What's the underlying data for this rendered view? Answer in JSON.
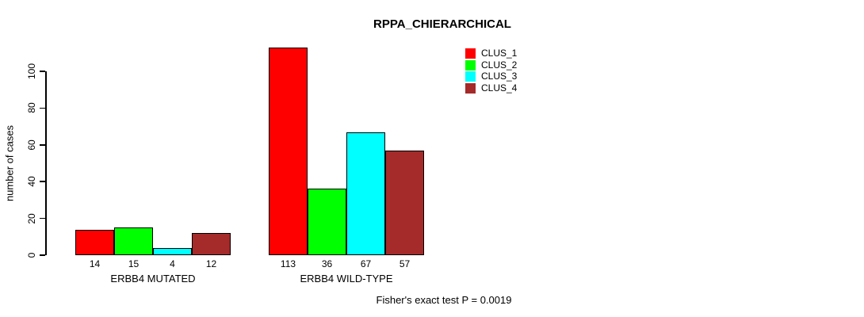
{
  "chart_data": {
    "type": "bar",
    "title": "RPPA_CHIERARCHICAL",
    "ylabel": "number of cases",
    "xlabel": "",
    "yticks": [
      0,
      20,
      40,
      60,
      80,
      100
    ],
    "ylim": [
      0,
      113
    ],
    "grid": false,
    "legend_position": "top-right",
    "bar_border_color": "#000000",
    "categories": [
      "ERBB4 MUTATED",
      "ERBB4 WILD-TYPE"
    ],
    "series": [
      {
        "name": "CLUS_1",
        "color": "#FF0000",
        "values": [
          14,
          113
        ]
      },
      {
        "name": "CLUS_2",
        "color": "#00FF00",
        "values": [
          15,
          36
        ]
      },
      {
        "name": "CLUS_3",
        "color": "#00FFFF",
        "values": [
          4,
          67
        ]
      },
      {
        "name": "CLUS_4",
        "color": "#A52A2A",
        "values": [
          12,
          57
        ]
      }
    ],
    "groups": [
      {
        "label": "ERBB4 MUTATED",
        "values": [
          14,
          15,
          4,
          12
        ]
      },
      {
        "label": "ERBB4 WILD-TYPE",
        "values": [
          113,
          36,
          67,
          57
        ]
      }
    ],
    "footnote": "Fisher's exact test P = 0.0019"
  }
}
